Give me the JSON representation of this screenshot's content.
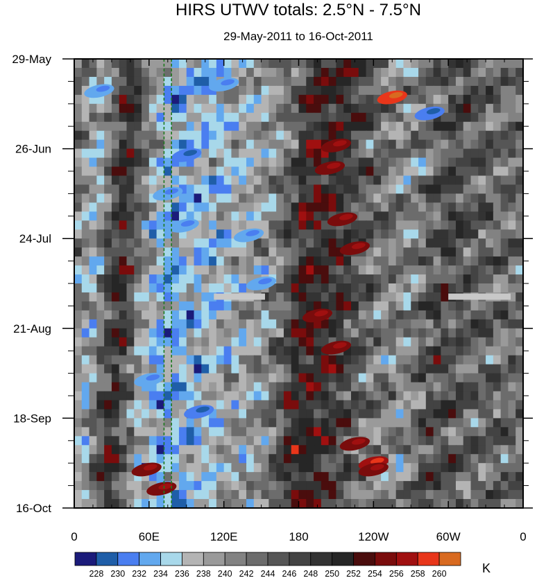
{
  "chart_data": {
    "type": "heatmap",
    "title": "HIRS UTWV totals: 2.5°N - 7.5°N",
    "subtitle": "29-May-2011 to 16-Oct-2011",
    "x_ticks": [
      "0",
      "60E",
      "120E",
      "180",
      "120W",
      "60W",
      "0"
    ],
    "x_tick_values": [
      0,
      60,
      120,
      180,
      240,
      300,
      360
    ],
    "xlim": [
      0,
      360
    ],
    "y_ticks": [
      "29-May",
      "26-Jun",
      "24-Jul",
      "21-Aug",
      "18-Sep",
      "16-Oct"
    ],
    "y_tick_values": [
      0,
      28,
      56,
      84,
      112,
      140
    ],
    "ylim": [
      0,
      140
    ],
    "y_inverted": true,
    "reference_lines_lon": [
      72,
      78
    ],
    "reference_line_color": "#1e7a1e",
    "missing_segments": [
      {
        "lon_start": 112,
        "lon_end": 153,
        "day": 74
      },
      {
        "lon_start": 300,
        "lon_end": 350,
        "day": 74
      }
    ],
    "colorbar": {
      "levels": [
        "228",
        "230",
        "232",
        "234",
        "236",
        "238",
        "240",
        "242",
        "244",
        "246",
        "248",
        "250",
        "252",
        "254",
        "256",
        "258",
        "260"
      ],
      "colors": [
        "#1b1b7a",
        "#1f5ea8",
        "#4a7ef0",
        "#62a8ee",
        "#a8d8ea",
        "#b4b4b4",
        "#9a9a9a",
        "#828282",
        "#6c6c6c",
        "#565656",
        "#434343",
        "#333333",
        "#262626",
        "#4a0d0d",
        "#7a0c0c",
        "#a01010",
        "#e8361a",
        "#d86a20"
      ],
      "unit": "K"
    },
    "longitude_structure": [
      {
        "lon": 0,
        "value": 243
      },
      {
        "lon": 10,
        "value": 240
      },
      {
        "lon": 22,
        "value": 237
      },
      {
        "lon": 35,
        "value": 246
      },
      {
        "lon": 45,
        "value": 250
      },
      {
        "lon": 55,
        "value": 244
      },
      {
        "lon": 65,
        "value": 238
      },
      {
        "lon": 75,
        "value": 235
      },
      {
        "lon": 85,
        "value": 234
      },
      {
        "lon": 100,
        "value": 235
      },
      {
        "lon": 120,
        "value": 236
      },
      {
        "lon": 140,
        "value": 238
      },
      {
        "lon": 160,
        "value": 240
      },
      {
        "lon": 175,
        "value": 243
      },
      {
        "lon": 185,
        "value": 249
      },
      {
        "lon": 200,
        "value": 251
      },
      {
        "lon": 215,
        "value": 249
      },
      {
        "lon": 230,
        "value": 246
      },
      {
        "lon": 245,
        "value": 243
      },
      {
        "lon": 260,
        "value": 241
      },
      {
        "lon": 275,
        "value": 240
      },
      {
        "lon": 290,
        "value": 244
      },
      {
        "lon": 305,
        "value": 247
      },
      {
        "lon": 320,
        "value": 245
      },
      {
        "lon": 340,
        "value": 243
      },
      {
        "lon": 360,
        "value": 243
      }
    ],
    "warm_features": [
      {
        "lon": 58,
        "day": 128,
        "value": 255
      },
      {
        "lon": 70,
        "day": 134,
        "value": 255
      },
      {
        "lon": 210,
        "day": 27,
        "value": 255
      },
      {
        "lon": 205,
        "day": 34,
        "value": 254
      },
      {
        "lon": 195,
        "day": 80,
        "value": 255
      },
      {
        "lon": 210,
        "day": 90,
        "value": 255
      },
      {
        "lon": 225,
        "day": 120,
        "value": 255
      },
      {
        "lon": 240,
        "day": 126,
        "value": 256
      },
      {
        "lon": 255,
        "day": 12,
        "value": 259
      },
      {
        "lon": 225,
        "day": 59,
        "value": 254
      },
      {
        "lon": 240,
        "day": 128,
        "value": 254
      },
      {
        "lon": 215,
        "day": 50,
        "value": 254
      }
    ],
    "cold_features": [
      {
        "lon": 75,
        "day": 42,
        "value": 232
      },
      {
        "lon": 90,
        "day": 30,
        "value": 231
      },
      {
        "lon": 60,
        "day": 100,
        "value": 232
      },
      {
        "lon": 88,
        "day": 52,
        "value": 232
      },
      {
        "lon": 100,
        "day": 110,
        "value": 231
      },
      {
        "lon": 140,
        "day": 55,
        "value": 232
      },
      {
        "lon": 285,
        "day": 17,
        "value": 231
      },
      {
        "lon": 20,
        "day": 10,
        "value": 233
      },
      {
        "lon": 120,
        "day": 8,
        "value": 233
      },
      {
        "lon": 150,
        "day": 70,
        "value": 233
      }
    ]
  }
}
